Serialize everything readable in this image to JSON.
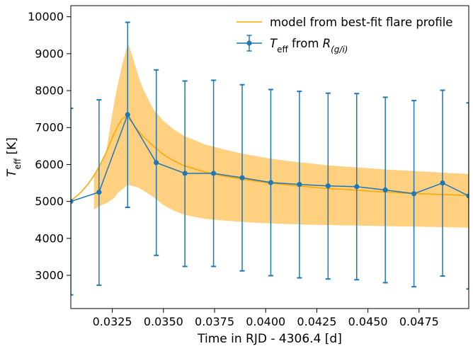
{
  "chart_data": {
    "type": "line",
    "xlabel": "Time in RJD - 4306.4  [d]",
    "ylabel": {
      "main": "T",
      "sub": "eff",
      "unit": " [K]"
    },
    "xlim": [
      0.03047,
      0.04993
    ],
    "ylim": [
      2100,
      10300
    ],
    "xticks": [
      0.0325,
      0.035,
      0.0375,
      0.04,
      0.0425,
      0.045,
      0.0475
    ],
    "xtick_labels": [
      "0.0325",
      "0.0350",
      "0.0375",
      "0.0400",
      "0.0425",
      "0.0450",
      "0.0475"
    ],
    "yticks": [
      3000,
      4000,
      5000,
      6000,
      7000,
      8000,
      9000,
      10000
    ],
    "ytick_labels": [
      "3000",
      "4000",
      "5000",
      "6000",
      "7000",
      "8000",
      "9000",
      "10000"
    ],
    "legend_position": "top-right",
    "colors": {
      "model": "#ffa500",
      "band": "#ffd080",
      "data": "#1f77b4"
    },
    "model": {
      "label": "model from best-fit flare profile",
      "x": [
        0.03047,
        0.0307,
        0.031,
        0.0313,
        0.0316,
        0.0319,
        0.0322,
        0.0325,
        0.0328,
        0.033,
        0.0332,
        0.0334,
        0.0337,
        0.034,
        0.0345,
        0.035,
        0.0355,
        0.036,
        0.037,
        0.038,
        0.039,
        0.04,
        0.041,
        0.042,
        0.043,
        0.044,
        0.045,
        0.046,
        0.047,
        0.048,
        0.049,
        0.04993
      ],
      "y": [
        5020,
        5120,
        5270,
        5460,
        5700,
        5990,
        6330,
        6730,
        7080,
        7250,
        7300,
        7180,
        6960,
        6760,
        6500,
        6270,
        6100,
        5970,
        5800,
        5680,
        5590,
        5510,
        5450,
        5400,
        5350,
        5320,
        5280,
        5250,
        5220,
        5200,
        5180,
        5160
      ]
    },
    "model_band": {
      "x": [
        0.0316,
        0.0319,
        0.0322,
        0.0324,
        0.0326,
        0.0328,
        0.033,
        0.0332,
        0.0333,
        0.0335,
        0.0338,
        0.034,
        0.0345,
        0.035,
        0.0355,
        0.036,
        0.037,
        0.038,
        0.039,
        0.04,
        0.041,
        0.042,
        0.043,
        0.044,
        0.045,
        0.046,
        0.047,
        0.048,
        0.049,
        0.04993
      ],
      "upper": [
        5700,
        5990,
        6330,
        7050,
        7700,
        8250,
        8750,
        9150,
        9250,
        8900,
        8350,
        8050,
        7500,
        7180,
        6950,
        6780,
        6550,
        6400,
        6280,
        6180,
        6100,
        6040,
        5980,
        5940,
        5900,
        5860,
        5830,
        5800,
        5770,
        5740
      ],
      "lower": [
        4780,
        4880,
        4950,
        5020,
        5100,
        5250,
        5330,
        5430,
        5440,
        5420,
        5370,
        5300,
        5120,
        4900,
        4750,
        4640,
        4530,
        4480,
        4440,
        4410,
        4390,
        4370,
        4360,
        4350,
        4340,
        4330,
        4320,
        4310,
        4300,
        4290
      ]
    },
    "series": [
      {
        "name_main": "T",
        "name_sub": "eff",
        "name_mid": " from ",
        "name_r": "R",
        "name_rsub": "(g/i)",
        "x": [
          0.03047,
          0.03185,
          0.03325,
          0.03465,
          0.03605,
          0.03745,
          0.03885,
          0.04025,
          0.04165,
          0.04305,
          0.04445,
          0.04585,
          0.04725,
          0.04865,
          0.04993
        ],
        "y": [
          5000,
          5250,
          7350,
          6050,
          5760,
          5760,
          5640,
          5510,
          5460,
          5420,
          5400,
          5310,
          5210,
          5500,
          5150
        ],
        "yerr_upper": [
          7520,
          7750,
          9850,
          8560,
          8260,
          8280,
          8160,
          8030,
          7980,
          7930,
          7920,
          7820,
          7730,
          8010,
          7670
        ],
        "yerr_lower": [
          2470,
          2730,
          4840,
          3540,
          3240,
          3240,
          3120,
          2990,
          2930,
          2900,
          2880,
          2800,
          2690,
          2980,
          2630
        ]
      }
    ]
  }
}
